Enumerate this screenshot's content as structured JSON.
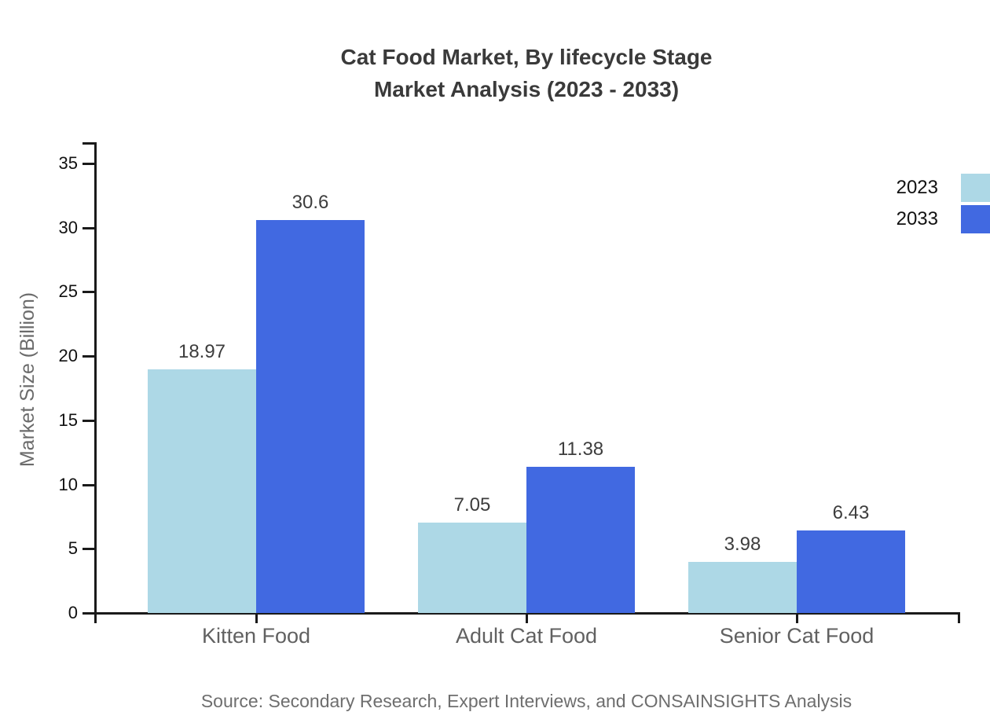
{
  "title": {
    "line1": "Cat Food Market, By lifecycle Stage",
    "line2": "Market Analysis (2023 - 2033)"
  },
  "source": "Source: Secondary Research, Expert Interviews, and CONSAINSIGHTS Analysis",
  "chart_data": {
    "type": "bar",
    "categories": [
      "Kitten Food",
      "Adult Cat Food",
      "Senior Cat Food"
    ],
    "series": [
      {
        "name": "2023",
        "color": "#ADD8E6",
        "values": [
          18.97,
          7.05,
          3.98
        ]
      },
      {
        "name": "2033",
        "color": "#4169E1",
        "values": [
          30.6,
          11.38,
          6.43
        ]
      }
    ],
    "ylabel": "Market Size (Billion)",
    "yticks": [
      0,
      5,
      10,
      15,
      20,
      25,
      30,
      35
    ],
    "ylim": [
      0,
      35
    ],
    "grid": false,
    "legend_position": "top-right",
    "value_labels": true
  },
  "colors": {
    "axis": "#1a1a1a",
    "series_2023": "#ADD8E6",
    "series_2033": "#4169E1",
    "title_text": "#3a3a3a",
    "muted_text": "#6e6e6e"
  }
}
